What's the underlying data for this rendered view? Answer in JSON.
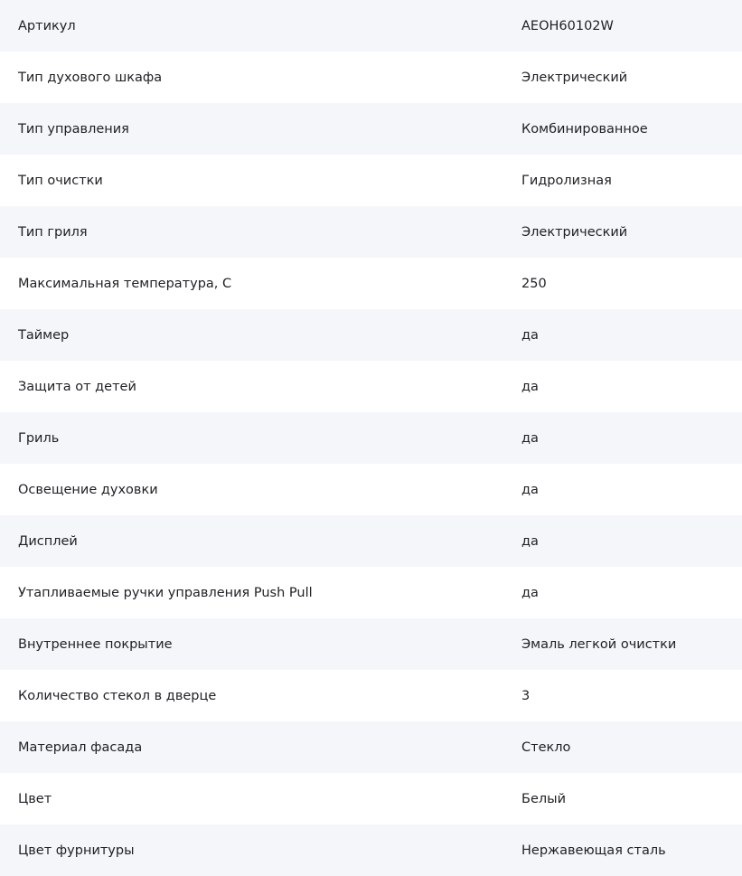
{
  "specs": [
    {
      "label": "Артикул",
      "value": "AEOH60102W"
    },
    {
      "label": "Тип духового шкафа",
      "value": "Электрический"
    },
    {
      "label": "Тип управления",
      "value": "Комбинированное"
    },
    {
      "label": "Тип очистки",
      "value": "Гидролизная"
    },
    {
      "label": "Тип гриля",
      "value": "Электрический"
    },
    {
      "label": "Максимальная температура, С",
      "value": "250"
    },
    {
      "label": "Таймер",
      "value": "да"
    },
    {
      "label": "Защита от детей",
      "value": "да"
    },
    {
      "label": "Гриль",
      "value": "да"
    },
    {
      "label": "Освещение духовки",
      "value": "да"
    },
    {
      "label": "Дисплей",
      "value": "да"
    },
    {
      "label": "Утапливаемые ручки управления Push Pull",
      "value": "да"
    },
    {
      "label": "Внутреннее покрытие",
      "value": "Эмаль легкой очистки"
    },
    {
      "label": "Количество стекол в дверце",
      "value": "3"
    },
    {
      "label": "Материал фасада",
      "value": "Стекло"
    },
    {
      "label": "Цвет",
      "value": "Белый"
    },
    {
      "label": "Цвет фурнитуры",
      "value": "Нержавеющая сталь"
    }
  ]
}
